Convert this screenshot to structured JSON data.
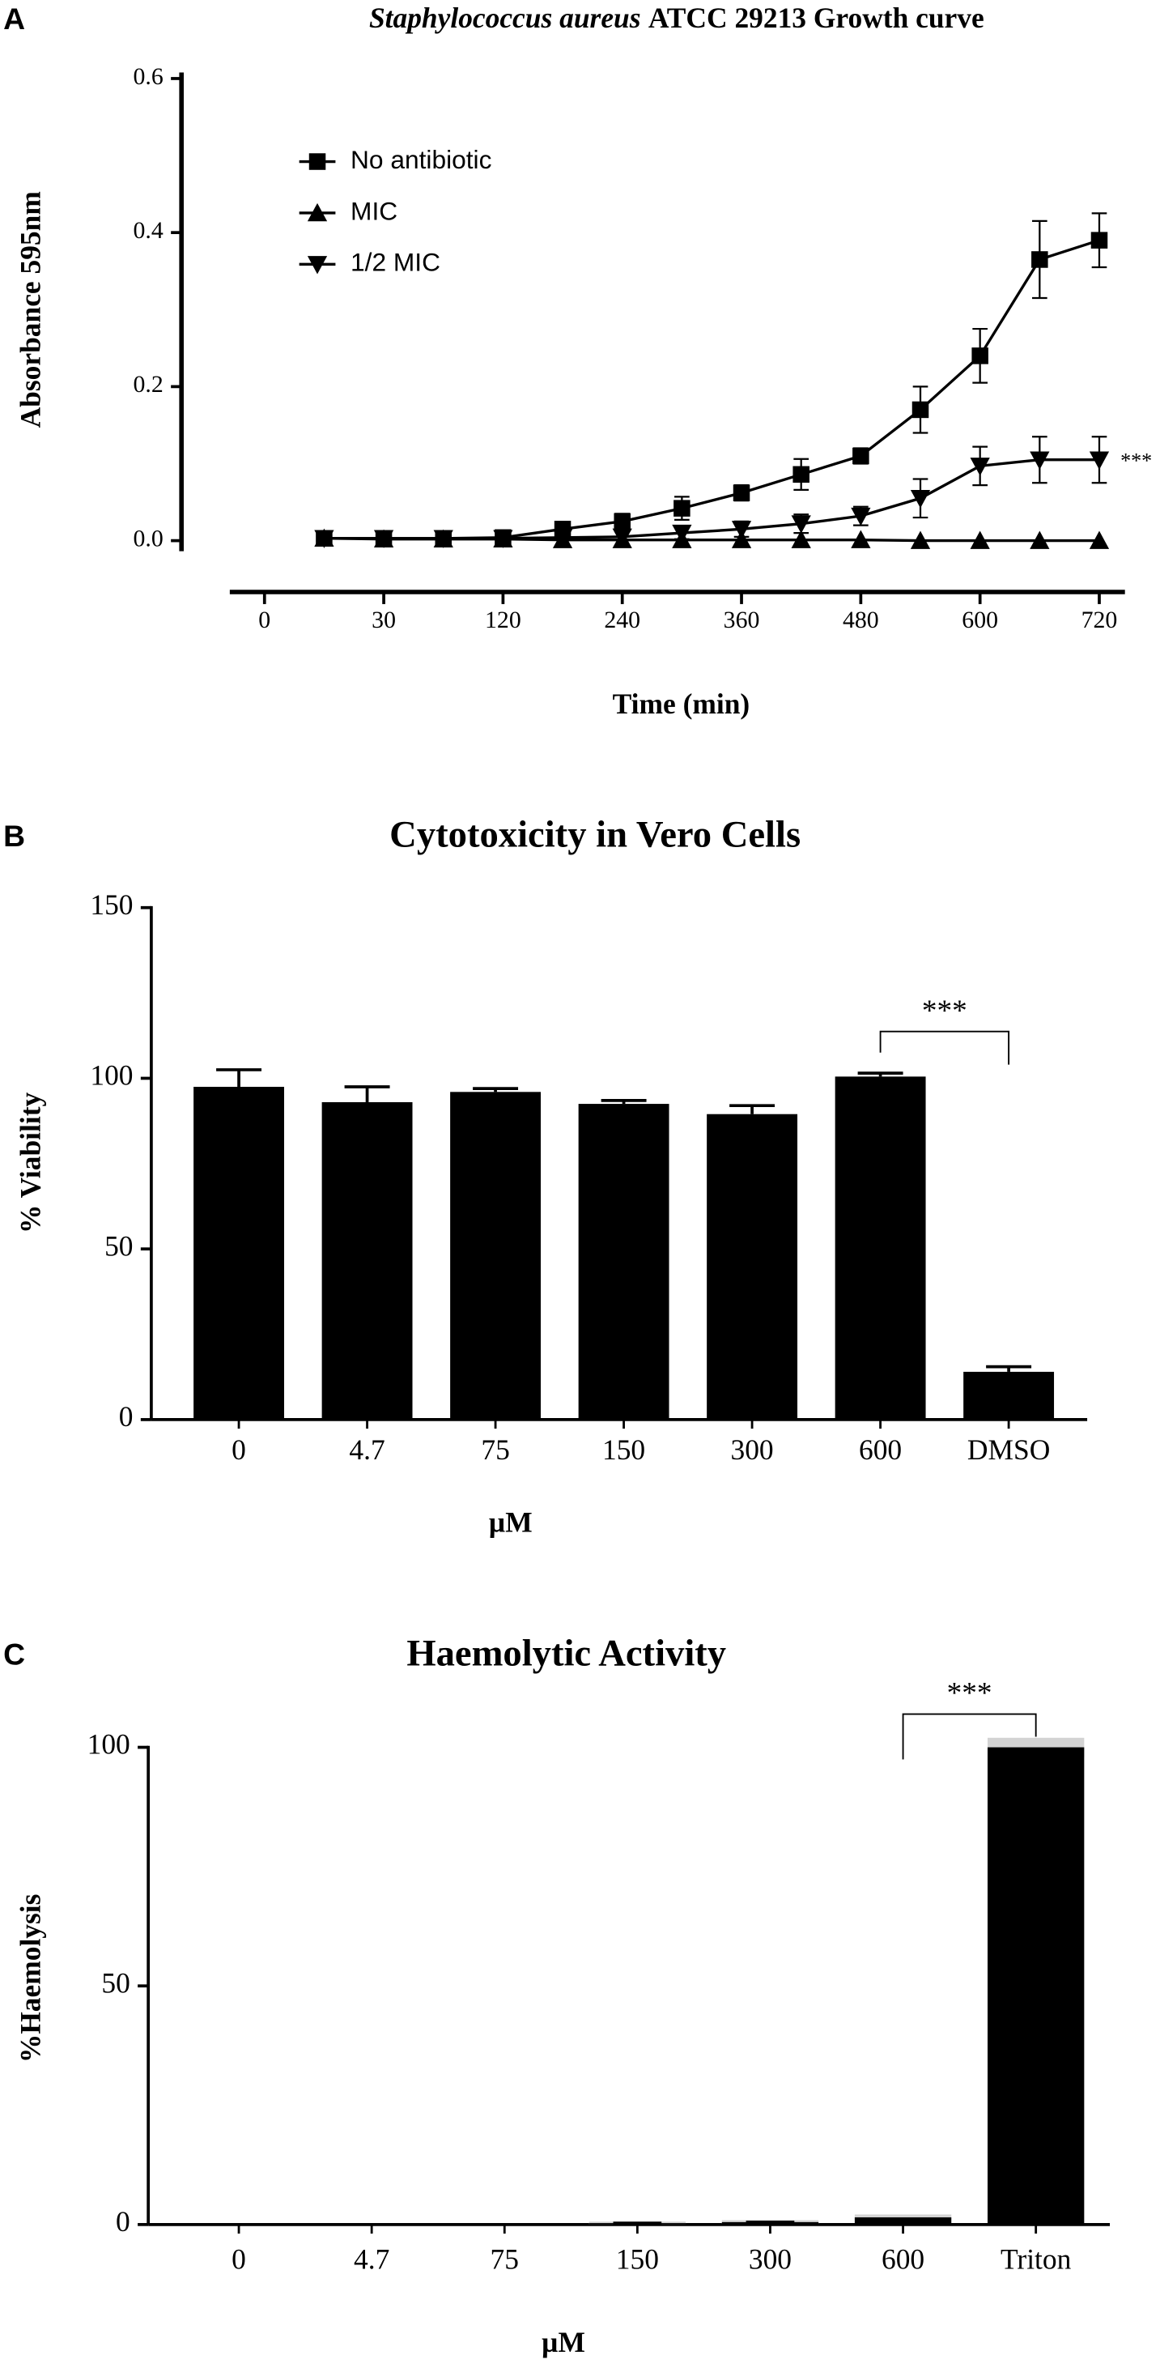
{
  "chart_data": [
    {
      "type": "line",
      "panel_label": "A",
      "title": [
        "Staphylococcus aureus",
        "ATCC 29213 Growth curve"
      ],
      "xlabel": "Time (min)",
      "ylabel": "Absorbance 595nm",
      "categories": [
        "0",
        null,
        "30",
        null,
        "120",
        null,
        "240",
        null,
        "360",
        null,
        "480",
        null,
        "600",
        null,
        "720"
      ],
      "ylim": [
        0,
        0.6
      ],
      "yticks": [
        {
          "value": 0,
          "label": "0.0"
        },
        0.2,
        0.4,
        0.6
      ],
      "legend": "upper left",
      "series": [
        {
          "name": "No antibiotic",
          "color": "#000000",
          "marker": "square",
          "values": [
            null,
            0.003,
            0.003,
            0.003,
            0.004,
            0.015,
            0.025,
            0.042,
            0.062,
            0.086,
            0.11,
            0.17,
            0.24,
            0.365,
            0.39
          ],
          "errors": [
            null,
            null,
            null,
            null,
            null,
            0.008,
            0.01,
            0.015,
            0.01,
            0.02,
            0.01,
            0.03,
            0.035,
            0.05,
            0.035
          ]
        },
        {
          "name": "MIC",
          "color": "#000000",
          "marker": "triangle-up",
          "values": [
            null,
            0.003,
            0.002,
            0.002,
            0.002,
            0.001,
            0.001,
            0.001,
            0.001,
            0.001,
            0.001,
            0,
            0,
            0,
            0
          ]
        },
        {
          "name": "1/2 MIC",
          "color": "#000000",
          "marker": "triangle-down",
          "values": [
            null,
            0.003,
            0.003,
            0.003,
            0.003,
            0.004,
            0.005,
            0.01,
            0.015,
            0.022,
            0.032,
            0.055,
            0.097,
            0.105,
            0.105
          ],
          "errors": [
            null,
            null,
            null,
            null,
            null,
            null,
            null,
            0.008,
            0.01,
            0.012,
            0.012,
            0.025,
            0.025,
            0.03,
            0.03
          ]
        }
      ],
      "annotation": "***"
    },
    {
      "type": "bar",
      "panel_label": "B",
      "title": "Cytotoxicity in Vero Cells",
      "xlabel": "µM",
      "ylabel": "% Viability",
      "categories": [
        "0",
        "4.7",
        "75",
        "150",
        "300",
        "600",
        "DMSO"
      ],
      "values": [
        97.5,
        93,
        96,
        92.5,
        89.5,
        100.5,
        14
      ],
      "errors": [
        5,
        4.5,
        1,
        1,
        2.5,
        1,
        1.5
      ],
      "color": "#000000",
      "error_style": "cap",
      "ylim": [
        0,
        150
      ],
      "yticks": [
        0,
        50,
        100,
        150
      ],
      "annotation": "***"
    },
    {
      "type": "bar",
      "panel_label": "C",
      "title": "Haemolytic Activity",
      "xlabel": "µM",
      "ylabel": "%Haemolysis",
      "categories": [
        "0",
        "4.7",
        "75",
        "150",
        "300",
        "600",
        "Triton"
      ],
      "values": [
        0,
        0,
        0,
        0.3,
        0.5,
        1.5,
        100
      ],
      "errors": [
        0,
        0,
        0,
        0.3,
        0.4,
        0.6,
        2
      ],
      "color": "#000000",
      "error_color": "#d3d3d3",
      "error_style": "band",
      "ylim": [
        0,
        100
      ],
      "yticks": [
        0,
        50,
        100
      ],
      "annotation": "***"
    }
  ]
}
